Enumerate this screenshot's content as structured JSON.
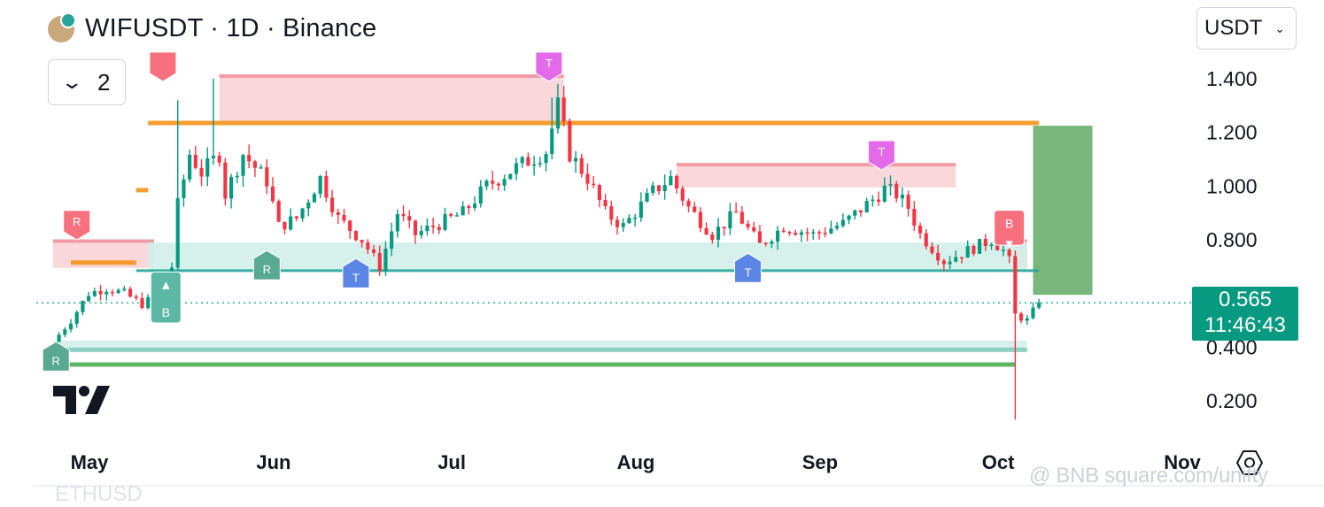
{
  "header": {
    "title": "WIFUSDT · 1D · Binance",
    "indicator_count": "2",
    "currency": "USDT"
  },
  "price_tag": {
    "price": "0.565",
    "countdown": "11:46:43"
  },
  "watermark": "@ BNB square.com/unifty",
  "partial_text": "ETHUSD",
  "icons": [
    "wif-coin-icon",
    "chevron-down-icon",
    "caret-down-icon",
    "tradingview-logo-icon",
    "settings-icon"
  ],
  "colors": {
    "up": "#089981",
    "down": "#f23645",
    "orange": "#f7931a",
    "green_line": "#4caf50",
    "resistance_zone": "#f9d0d4",
    "support_zone": "#cfeee7",
    "tp_box": "#6eb172"
  },
  "chart_data": {
    "type": "candlestick",
    "y_ticks": [
      "1.400",
      "1.200",
      "1.000",
      "0.800",
      "0.400",
      "0.200"
    ],
    "x_ticks": [
      {
        "label": "May",
        "day": 0
      },
      {
        "label": "Jun",
        "day": 31
      },
      {
        "label": "Jul",
        "day": 61
      },
      {
        "label": "Aug",
        "day": 92
      },
      {
        "label": "Sep",
        "day": 123
      },
      {
        "label": "Oct",
        "day": 153
      },
      {
        "label": "Nov",
        "day": 184
      }
    ],
    "ylim": [
      0.12,
      1.52
    ],
    "current_price": 0.565,
    "last_day": 163,
    "anchors": [
      [
        -3,
        0.42
      ],
      [
        0,
        0.5
      ],
      [
        3,
        0.6
      ],
      [
        6,
        0.62
      ],
      [
        9,
        0.6
      ],
      [
        12,
        0.56
      ],
      [
        15,
        0.6
      ],
      [
        17,
        0.7
      ],
      [
        18,
        0.93
      ],
      [
        20,
        1.12
      ],
      [
        22,
        1.05
      ],
      [
        25,
        1.12
      ],
      [
        26,
        0.97
      ],
      [
        29,
        1.12
      ],
      [
        31,
        1.07
      ],
      [
        33,
        1.02
      ],
      [
        35,
        0.85
      ],
      [
        38,
        0.88
      ],
      [
        42,
        1.03
      ],
      [
        45,
        0.88
      ],
      [
        49,
        0.8
      ],
      [
        52,
        0.7
      ],
      [
        55,
        0.9
      ],
      [
        58,
        0.82
      ],
      [
        62,
        0.86
      ],
      [
        66,
        0.9
      ],
      [
        70,
        1.0
      ],
      [
        75,
        1.07
      ],
      [
        80,
        1.13
      ],
      [
        82,
        1.3
      ],
      [
        84,
        1.12
      ],
      [
        87,
        1.03
      ],
      [
        90,
        0.9
      ],
      [
        93,
        0.85
      ],
      [
        98,
        0.98
      ],
      [
        101,
        1.03
      ],
      [
        104,
        0.92
      ],
      [
        108,
        0.82
      ],
      [
        112,
        0.9
      ],
      [
        116,
        0.78
      ],
      [
        120,
        0.85
      ],
      [
        125,
        0.82
      ],
      [
        130,
        0.86
      ],
      [
        135,
        0.95
      ],
      [
        137,
        0.99
      ],
      [
        139,
        0.97
      ],
      [
        141,
        0.92
      ],
      [
        143,
        0.82
      ],
      [
        147,
        0.72
      ],
      [
        150,
        0.75
      ],
      [
        155,
        0.8
      ],
      [
        157,
        0.76
      ],
      [
        158,
        0.72
      ],
      [
        159,
        0.52
      ],
      [
        161,
        0.5
      ],
      [
        163,
        0.565
      ]
    ],
    "horizontal_lines": [
      {
        "name": "orange-resistance",
        "value": 1.235,
        "from_day": 13,
        "to_day": 163,
        "color": "#f7931a"
      },
      {
        "name": "orange-short-1",
        "value": 0.715,
        "from_day": 0,
        "to_day": 11,
        "color": "#f7931a"
      },
      {
        "name": "orange-short-2",
        "value": 0.985,
        "from_day": 11,
        "to_day": 13,
        "color": "#f7931a"
      },
      {
        "name": "support-line",
        "value": 0.685,
        "from_day": 11,
        "to_day": 163,
        "color": "#26a69a"
      },
      {
        "name": "green-support",
        "value": 0.335,
        "from_day": -3,
        "to_day": 159,
        "color": "#4caf50"
      }
    ],
    "zones": [
      {
        "name": "resistance-zone-top",
        "top": 1.41,
        "bottom": 1.24,
        "from_day": 25,
        "to_day": 83
      },
      {
        "name": "resistance-zone-mid",
        "top": 1.08,
        "bottom": 0.995,
        "from_day": 102,
        "to_day": 149
      },
      {
        "name": "resistance-zone-left",
        "top": 0.795,
        "bottom": 0.695,
        "from_day": -3,
        "to_day": 14
      },
      {
        "name": "resistance-zone-right",
        "top": 0.795,
        "bottom": 0.695,
        "from_day": 159,
        "to_day": 161
      },
      {
        "name": "support-zone",
        "top": 0.79,
        "bottom": 0.685,
        "from_day": 13,
        "to_day": 161
      },
      {
        "name": "low-zone",
        "top": 0.425,
        "bottom": 0.39,
        "from_day": -3,
        "to_day": 161
      }
    ],
    "tp_box": {
      "top": 1.225,
      "bottom": 0.595,
      "from_day": 162,
      "to_day": 172
    },
    "markers": [
      {
        "text": "R",
        "day": 1,
        "value": 0.83,
        "color": "#f7707e",
        "dir": "down"
      },
      {
        "text": "",
        "day": 15.5,
        "value": 1.42,
        "color": "#f7707e",
        "dir": "down"
      },
      {
        "text": "T",
        "day": 80.5,
        "value": 1.42,
        "color": "#e36bea",
        "dir": "down"
      },
      {
        "text": "T",
        "day": 136.5,
        "value": 1.09,
        "color": "#e36bea",
        "dir": "down"
      },
      {
        "text": "R",
        "day": 33,
        "value": 0.73,
        "color": "#5aa992",
        "dir": "up"
      },
      {
        "text": "T",
        "day": 48,
        "value": 0.7,
        "color": "#5b86e6",
        "dir": "up"
      },
      {
        "text": "T",
        "day": 114,
        "value": 0.72,
        "color": "#5b86e6",
        "dir": "up"
      },
      {
        "text": "R",
        "day": -2.5,
        "value": 0.39,
        "color": "#5aa992",
        "dir": "up"
      }
    ],
    "signals": [
      {
        "text": "B",
        "day": 16,
        "top": 0.68,
        "bottom": 0.49,
        "color": "#5cb8a4",
        "arrow": "▲"
      },
      {
        "text": "B",
        "day": 158,
        "top": 0.91,
        "bottom": 0.78,
        "color": "#f7707e",
        "arrow": "▼"
      }
    ]
  }
}
